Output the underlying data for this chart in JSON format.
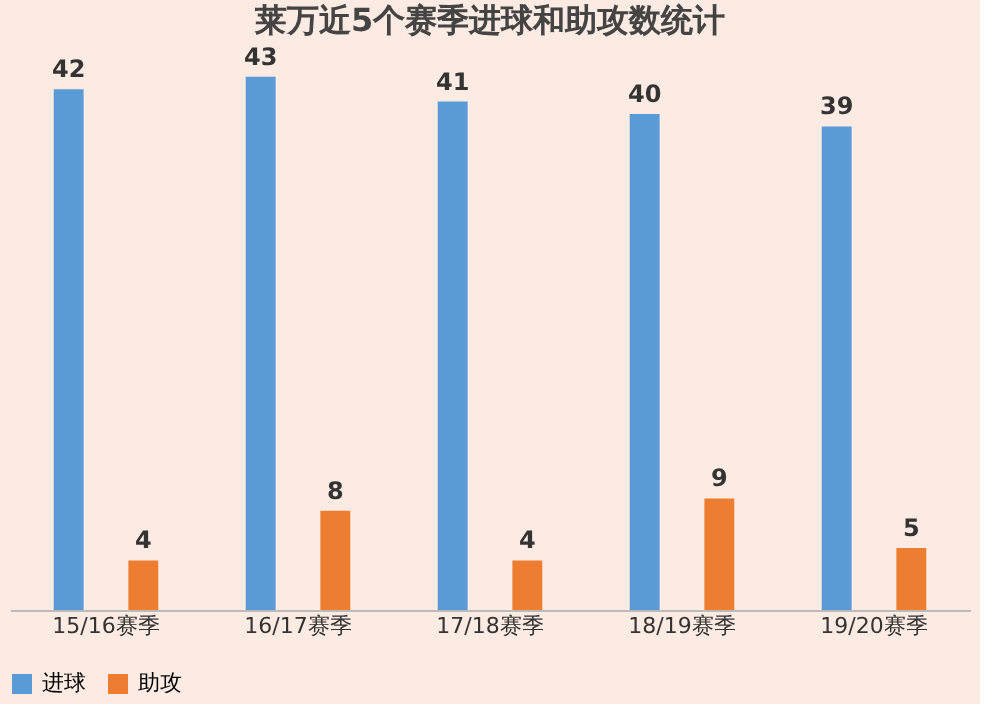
{
  "chart_data": {
    "type": "bar",
    "title": "莱万近5个赛季进球和助攻数统计",
    "categories": [
      "15/16赛季",
      "16/17赛季",
      "17/18赛季",
      "18/19赛季",
      "19/20赛季"
    ],
    "series": [
      {
        "name": "进球",
        "color": "#5b9bd5",
        "values": [
          42,
          43,
          41,
          40,
          39
        ]
      },
      {
        "name": "助攻",
        "color": "#ed7d31",
        "values": [
          4,
          8,
          4,
          9,
          5
        ]
      }
    ],
    "data_labels": true,
    "legend": "bottom",
    "grid": false
  }
}
